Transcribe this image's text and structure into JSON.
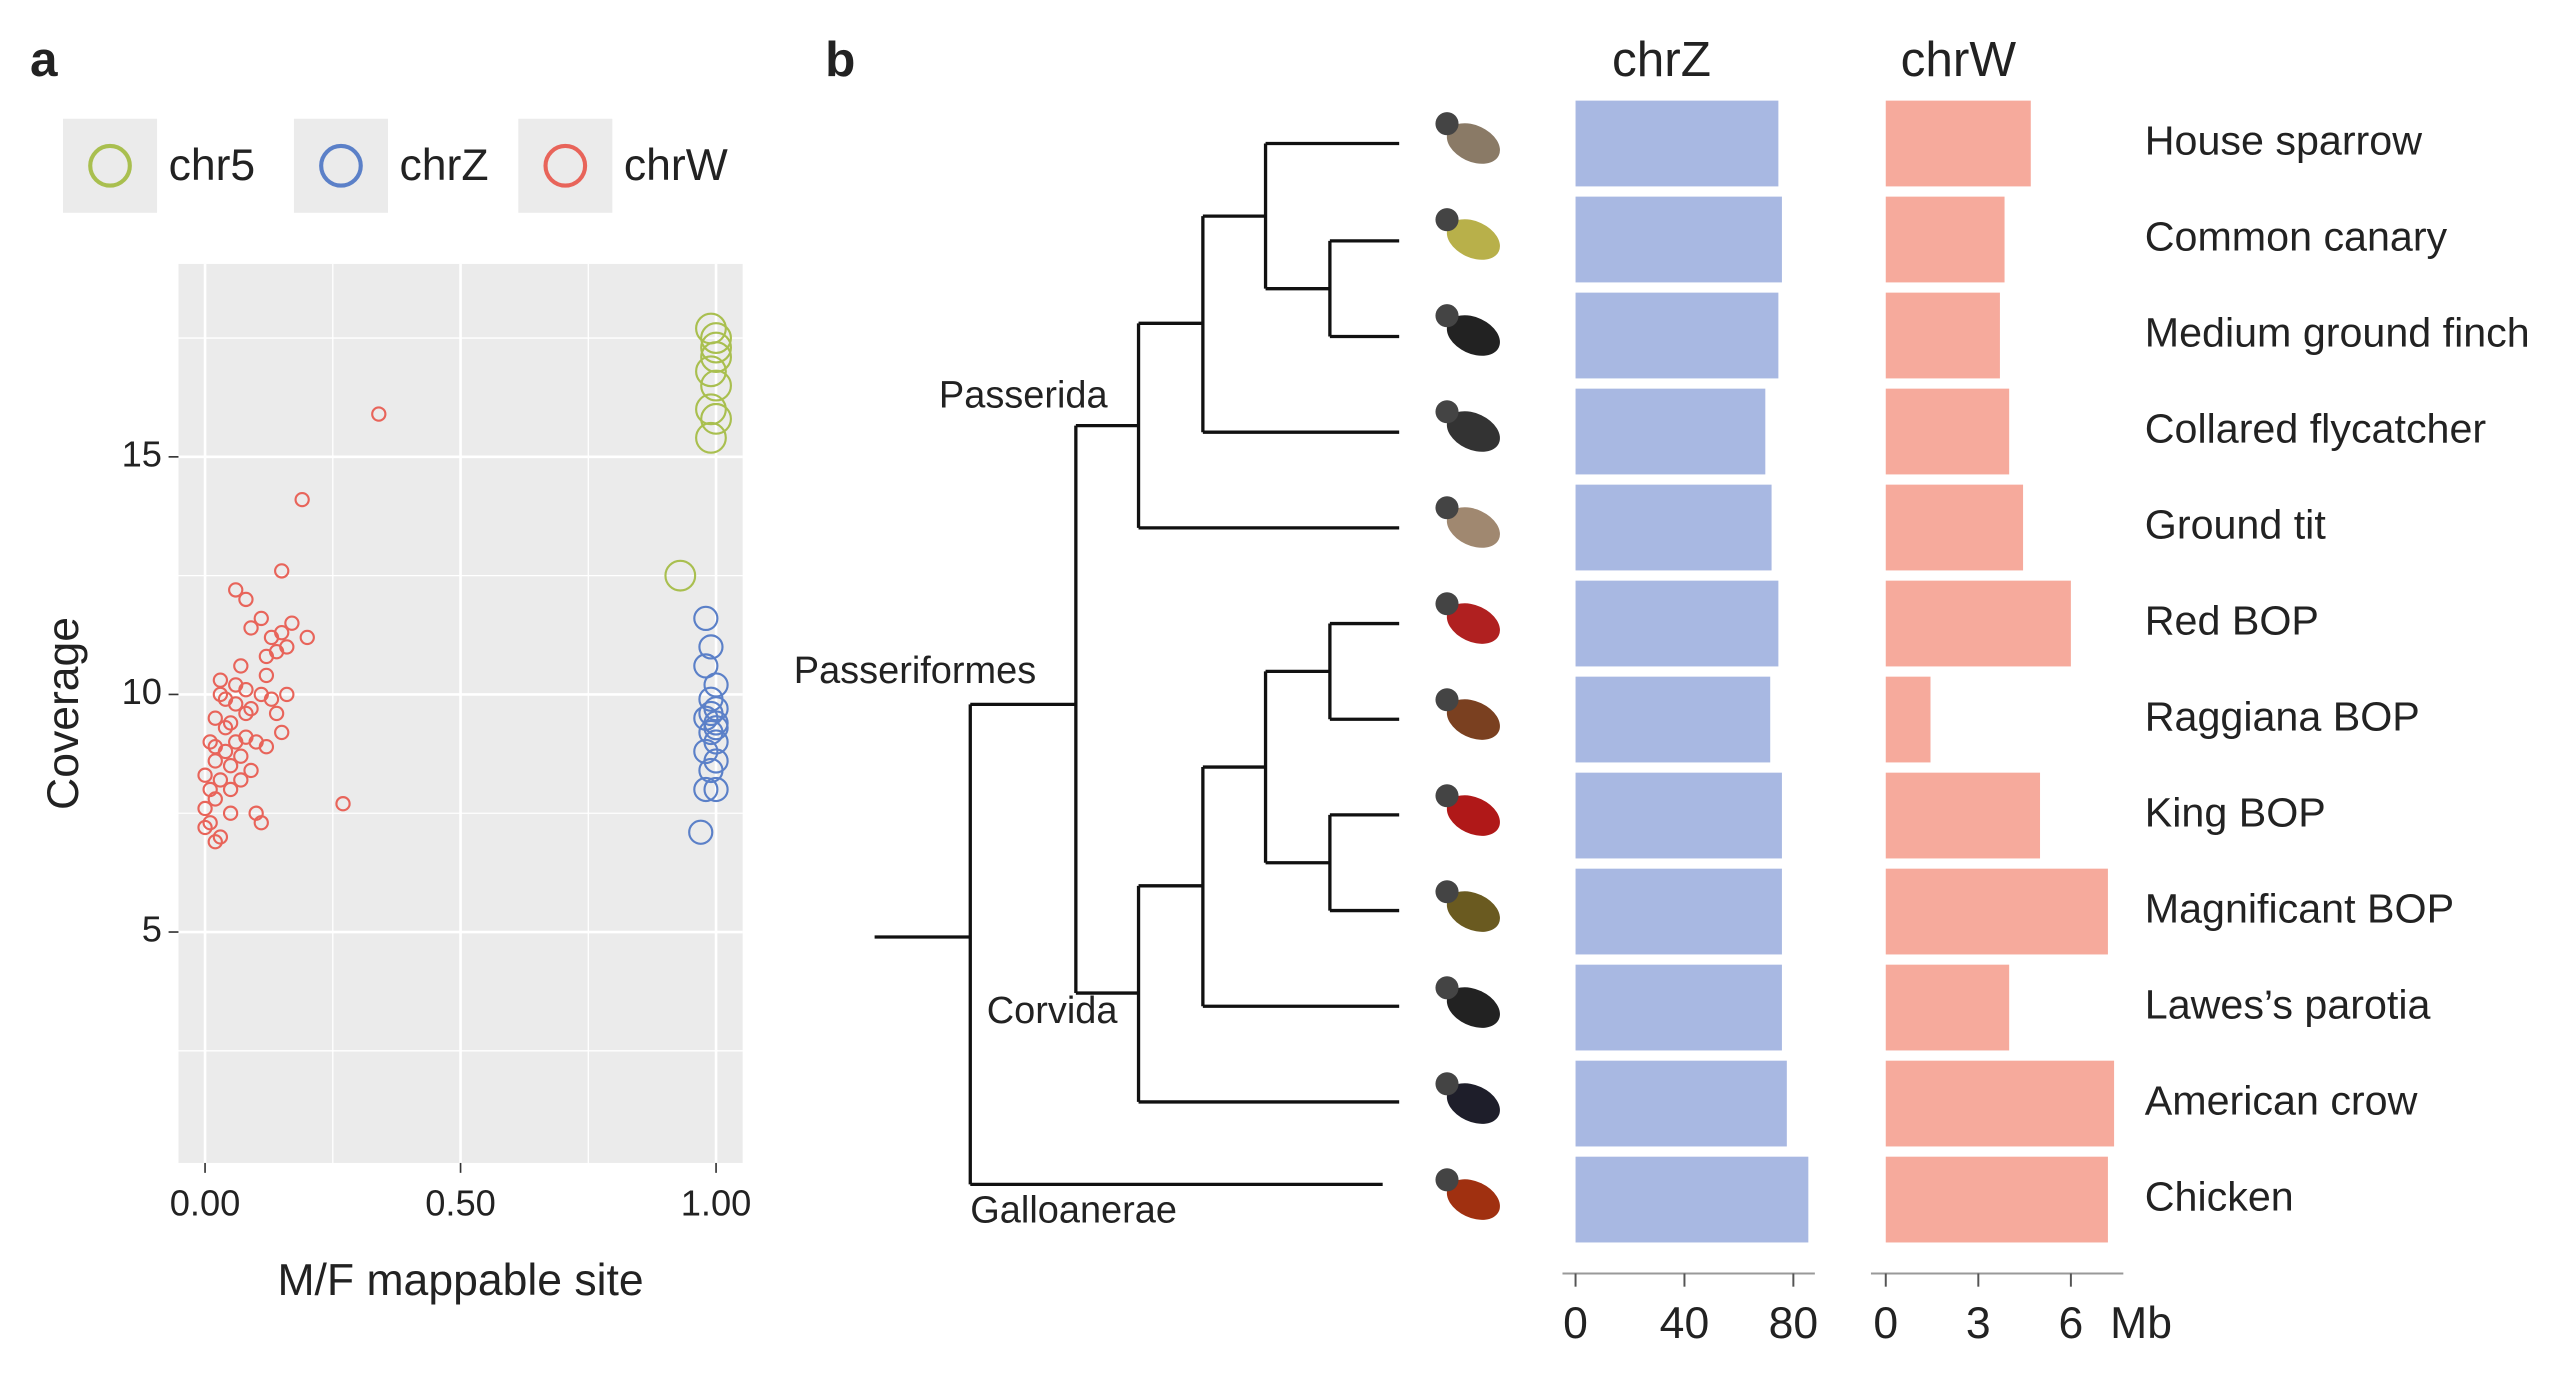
{
  "panel_labels": [
    "a",
    "b"
  ],
  "tree": {
    "clades": [
      "Passerida",
      "Passeriformes",
      "Corvida",
      "Galloanerae"
    ]
  },
  "chart_data": [
    {
      "type": "scatter",
      "x_label": "M/F mappable site",
      "y_label": "Coverage",
      "xlim": [
        -0.052,
        1.052
      ],
      "ylim": [
        0.14,
        19.06
      ],
      "xticks": [
        {
          "value": 0,
          "label": "0.00"
        },
        {
          "value": 0.5,
          "label": "0.50"
        },
        {
          "value": 1,
          "label": "1.00"
        }
      ],
      "yticks": [
        5,
        10,
        15
      ],
      "grid": true,
      "legend": "top",
      "series": [
        {
          "name": "chr5",
          "color": "#a9bf4f",
          "x": [
            0.93,
            0.99,
            1.0,
            1.0,
            0.99,
            1.0,
            1.0,
            0.99,
            0.99,
            1.0
          ],
          "values": [
            12.5,
            15.4,
            15.8,
            16.5,
            16.8,
            17.1,
            17.5,
            17.7,
            16.0,
            17.3
          ]
        },
        {
          "name": "chrZ",
          "color": "#5b80c8",
          "x": [
            0.98,
            0.99,
            0.98,
            1.0,
            0.99,
            1.0,
            0.98,
            1.0,
            0.99,
            1.0,
            0.98,
            1.0,
            0.99,
            1.0,
            0.98,
            0.97,
            0.99,
            1.0
          ],
          "values": [
            11.6,
            11.0,
            10.6,
            10.2,
            9.9,
            9.7,
            9.5,
            9.4,
            9.2,
            9.0,
            8.8,
            8.6,
            8.4,
            8.0,
            8.0,
            7.1,
            9.6,
            9.3
          ]
        },
        {
          "name": "chrW",
          "color": "#e8645a",
          "x": [
            0.0,
            0.01,
            0.0,
            0.02,
            0.01,
            0.0,
            0.02,
            0.01,
            0.02,
            0.03,
            0.02,
            0.03,
            0.04,
            0.04,
            0.05,
            0.05,
            0.05,
            0.06,
            0.06,
            0.06,
            0.03,
            0.07,
            0.07,
            0.08,
            0.08,
            0.07,
            0.09,
            0.1,
            0.1,
            0.11,
            0.11,
            0.12,
            0.12,
            0.13,
            0.14,
            0.15,
            0.16,
            0.13,
            0.15,
            0.16,
            0.06,
            0.08,
            0.09,
            0.11,
            0.15,
            0.17,
            0.2,
            0.19,
            0.34,
            0.27,
            0.04,
            0.05,
            0.02,
            0.09,
            0.12,
            0.03,
            0.14,
            0.08
          ],
          "values": [
            7.2,
            7.3,
            7.6,
            6.9,
            8.0,
            8.3,
            8.6,
            9.0,
            9.5,
            10.0,
            7.8,
            8.2,
            8.8,
            9.3,
            7.5,
            8.0,
            8.5,
            9.0,
            9.8,
            10.2,
            7.0,
            8.2,
            8.7,
            9.1,
            9.6,
            10.6,
            8.4,
            9.0,
            7.5,
            7.3,
            10.0,
            8.9,
            10.8,
            11.2,
            9.6,
            9.2,
            10.0,
            9.9,
            11.3,
            11.0,
            12.2,
            12.0,
            11.4,
            11.6,
            12.6,
            11.5,
            11.2,
            14.1,
            15.9,
            7.7,
            9.9,
            9.4,
            8.9,
            9.7,
            10.4,
            10.3,
            10.9,
            10.1
          ]
        }
      ]
    },
    {
      "type": "hbar",
      "unit": "Mb",
      "categories": [
        "House sparrow",
        "Common canary",
        "Medium ground finch",
        "Collared flycatcher",
        "Ground tit",
        "Red BOP",
        "Raggiana BOP",
        "King BOP",
        "Magnificant BOP",
        "Lawes’s parotia",
        "American crow",
        "Chicken"
      ],
      "category_colors": [
        "#5b80c8",
        "#333333",
        "#5b80c8",
        "#5b80c8",
        "#5b80c8",
        "#5b80c8",
        "#333333",
        "#333333",
        "#333333",
        "#5b80c8",
        "#5b80c8",
        "#333333"
      ],
      "series": [
        {
          "name": "chrZ",
          "color": "#a8b8e2",
          "xlim": [
            -4.8,
            87.9
          ],
          "xticks": [
            0,
            40,
            80
          ],
          "values": [
            74.5,
            75.8,
            74.5,
            69.7,
            72,
            74.5,
            71.5,
            75.8,
            75.8,
            75.8,
            77.6,
            85.5
          ]
        },
        {
          "name": "chrW",
          "color": "#f6aa9c",
          "xlim": [
            -0.48,
            7.7
          ],
          "xticks": [
            0,
            3,
            6
          ],
          "values": [
            4.7,
            3.85,
            3.7,
            4.0,
            4.45,
            6.0,
            1.45,
            5.0,
            7.2,
            4.0,
            7.4,
            7.2
          ]
        }
      ]
    }
  ]
}
